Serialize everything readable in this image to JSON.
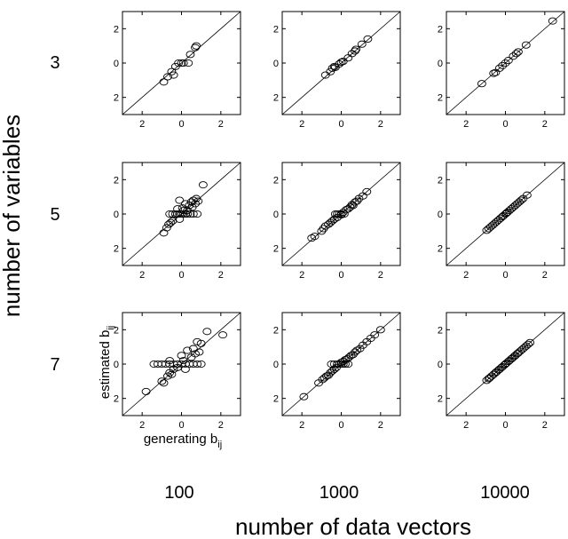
{
  "figure": {
    "y_super_label": "number of variables",
    "x_super_label": "number of data vectors",
    "row_labels": [
      "3",
      "5",
      "7"
    ],
    "col_labels": [
      "100",
      "1000",
      "10000"
    ],
    "panel_ylabel": "estimated b",
    "panel_ylabel_sub": "ij",
    "panel_xlabel": "generating b",
    "panel_xlabel_sub": "ij"
  },
  "chart_data": [
    {
      "type": "scatter",
      "row": "3",
      "col": "100",
      "xlim": [
        -3,
        3
      ],
      "ylim": [
        -3,
        3
      ],
      "xticks": [
        "2",
        "0",
        "2"
      ],
      "yticks": [
        "2",
        "0",
        "2"
      ],
      "grid": false,
      "diagonal": "y = x",
      "points": [
        [
          -0.9,
          -1.1
        ],
        [
          -0.7,
          -0.8
        ],
        [
          -0.5,
          -0.5
        ],
        [
          -0.4,
          -0.7
        ],
        [
          -0.3,
          -0.2
        ],
        [
          -0.15,
          0
        ],
        [
          0,
          0
        ],
        [
          0.1,
          0
        ],
        [
          0.35,
          0
        ],
        [
          0.45,
          0.5
        ],
        [
          0.7,
          0.9
        ],
        [
          0.75,
          1.0
        ]
      ]
    },
    {
      "type": "scatter",
      "row": "3",
      "col": "1000",
      "xlim": [
        -3,
        3
      ],
      "ylim": [
        -3,
        3
      ],
      "xticks": [
        "2",
        "0",
        "2"
      ],
      "yticks": [
        "2",
        "0",
        "2"
      ],
      "grid": false,
      "diagonal": "y = x",
      "points": [
        [
          -0.8,
          -0.7
        ],
        [
          -0.55,
          -0.5
        ],
        [
          -0.45,
          -0.3
        ],
        [
          -0.35,
          -0.2
        ],
        [
          -0.3,
          -0.25
        ],
        [
          -0.1,
          -0.05
        ],
        [
          0,
          0.05
        ],
        [
          0.1,
          0.1
        ],
        [
          0.35,
          0.3
        ],
        [
          0.55,
          0.55
        ],
        [
          0.7,
          0.7
        ],
        [
          0.75,
          0.8
        ],
        [
          1.05,
          1.1
        ],
        [
          1.35,
          1.4
        ]
      ]
    },
    {
      "type": "scatter",
      "row": "3",
      "col": "10000",
      "xlim": [
        -3,
        3
      ],
      "ylim": [
        -3,
        3
      ],
      "xticks": [
        "2",
        "0",
        "2"
      ],
      "yticks": [
        "2",
        "0",
        "2"
      ],
      "grid": false,
      "diagonal": "y = x",
      "points": [
        [
          -1.2,
          -1.2
        ],
        [
          -0.6,
          -0.6
        ],
        [
          -0.5,
          -0.55
        ],
        [
          -0.3,
          -0.3
        ],
        [
          -0.15,
          -0.15
        ],
        [
          0,
          0
        ],
        [
          0.15,
          0.15
        ],
        [
          0.4,
          0.4
        ],
        [
          0.55,
          0.55
        ],
        [
          0.65,
          0.65
        ],
        [
          1.05,
          1.05
        ],
        [
          2.4,
          2.45
        ]
      ]
    },
    {
      "type": "scatter",
      "row": "5",
      "col": "100",
      "xlim": [
        -3,
        3
      ],
      "ylim": [
        -3,
        3
      ],
      "xticks": [
        "2",
        "0",
        "2"
      ],
      "yticks": [
        "2",
        "0",
        "2"
      ],
      "grid": false,
      "diagonal": "y = x",
      "points": [
        [
          -0.9,
          -1.1
        ],
        [
          -0.75,
          -0.8
        ],
        [
          -0.65,
          -0.6
        ],
        [
          -0.55,
          -0.5
        ],
        [
          -0.45,
          -0.4
        ],
        [
          -0.6,
          0
        ],
        [
          -0.45,
          0
        ],
        [
          -0.3,
          0
        ],
        [
          -0.2,
          0
        ],
        [
          -0.1,
          0
        ],
        [
          0,
          0
        ],
        [
          0.1,
          0
        ],
        [
          0.2,
          0
        ],
        [
          0.3,
          0
        ],
        [
          0.45,
          0
        ],
        [
          0.6,
          0
        ],
        [
          0.8,
          0
        ],
        [
          -0.2,
          0.3
        ],
        [
          -0.1,
          0.8
        ],
        [
          -0.1,
          -0.3
        ],
        [
          0.05,
          0.35
        ],
        [
          0.1,
          0.2
        ],
        [
          0.2,
          0.6
        ],
        [
          0.3,
          0.2
        ],
        [
          0.4,
          0.5
        ],
        [
          0.5,
          0.7
        ],
        [
          0.55,
          0.4
        ],
        [
          0.6,
          0.8
        ],
        [
          0.7,
          0.6
        ],
        [
          0.75,
          0.9
        ],
        [
          0.85,
          0.75
        ],
        [
          1.1,
          1.7
        ]
      ]
    },
    {
      "type": "scatter",
      "row": "5",
      "col": "1000",
      "xlim": [
        -3,
        3
      ],
      "ylim": [
        -3,
        3
      ],
      "xticks": [
        "2",
        "0",
        "2"
      ],
      "yticks": [
        "2",
        "0",
        "2"
      ],
      "grid": false,
      "diagonal": "y = x",
      "points": [
        [
          -1.5,
          -1.4
        ],
        [
          -1.35,
          -1.3
        ],
        [
          -1.0,
          -1.0
        ],
        [
          -0.9,
          -0.85
        ],
        [
          -0.8,
          -0.7
        ],
        [
          -0.65,
          -0.6
        ],
        [
          -0.55,
          -0.5
        ],
        [
          -0.45,
          -0.4
        ],
        [
          -0.35,
          -0.3
        ],
        [
          -0.3,
          0
        ],
        [
          -0.2,
          0
        ],
        [
          -0.2,
          -0.2
        ],
        [
          -0.1,
          0
        ],
        [
          0,
          0
        ],
        [
          0,
          -0.05
        ],
        [
          0.1,
          0.1
        ],
        [
          0.15,
          0
        ],
        [
          0.25,
          0.25
        ],
        [
          0.35,
          0.3
        ],
        [
          0.45,
          0.4
        ],
        [
          0.55,
          0.55
        ],
        [
          0.6,
          0.5
        ],
        [
          0.7,
          0.7
        ],
        [
          0.8,
          0.75
        ],
        [
          0.9,
          0.9
        ],
        [
          1.1,
          1.05
        ],
        [
          1.3,
          1.3
        ]
      ]
    },
    {
      "type": "scatter",
      "row": "5",
      "col": "10000",
      "xlim": [
        -3,
        3
      ],
      "ylim": [
        -3,
        3
      ],
      "xticks": [
        "2",
        "0",
        "2"
      ],
      "yticks": [
        "2",
        "0",
        "2"
      ],
      "grid": false,
      "diagonal": "y = x",
      "points": [
        [
          -0.95,
          -0.95
        ],
        [
          -0.85,
          -0.85
        ],
        [
          -0.75,
          -0.75
        ],
        [
          -0.65,
          -0.65
        ],
        [
          -0.55,
          -0.55
        ],
        [
          -0.45,
          -0.45
        ],
        [
          -0.35,
          -0.35
        ],
        [
          -0.25,
          -0.25
        ],
        [
          -0.15,
          -0.15
        ],
        [
          -0.1,
          -0.1
        ],
        [
          0,
          0
        ],
        [
          0.05,
          0.05
        ],
        [
          0.1,
          0.1
        ],
        [
          0.2,
          0.2
        ],
        [
          0.3,
          0.3
        ],
        [
          0.4,
          0.4
        ],
        [
          0.5,
          0.5
        ],
        [
          0.6,
          0.6
        ],
        [
          0.7,
          0.7
        ],
        [
          0.8,
          0.8
        ],
        [
          0.9,
          0.9
        ],
        [
          1.1,
          1.1
        ]
      ]
    },
    {
      "type": "scatter",
      "row": "7",
      "col": "100",
      "xlim": [
        -3,
        3
      ],
      "ylim": [
        -3,
        3
      ],
      "xticks": [
        "2",
        "0",
        "2"
      ],
      "yticks": [
        "2",
        "0",
        "2"
      ],
      "grid": false,
      "diagonal": "y = x",
      "points": [
        [
          -1.8,
          -1.6
        ],
        [
          -1.0,
          -1.0
        ],
        [
          -0.9,
          -1.1
        ],
        [
          -0.7,
          -0.7
        ],
        [
          -0.6,
          -0.5
        ],
        [
          -0.5,
          -0.6
        ],
        [
          -0.4,
          -0.3
        ],
        [
          -1.4,
          0
        ],
        [
          -1.2,
          0
        ],
        [
          -1.0,
          0
        ],
        [
          -0.8,
          0
        ],
        [
          -0.6,
          0
        ],
        [
          -0.4,
          0
        ],
        [
          -0.2,
          0
        ],
        [
          0,
          0
        ],
        [
          0.2,
          0
        ],
        [
          0.4,
          0
        ],
        [
          0.6,
          0
        ],
        [
          0.8,
          0
        ],
        [
          1.0,
          0
        ],
        [
          -0.6,
          0.2
        ],
        [
          -0.2,
          -0.2
        ],
        [
          0,
          0.5
        ],
        [
          0.1,
          0.2
        ],
        [
          0.2,
          -0.3
        ],
        [
          0.3,
          0.8
        ],
        [
          0.5,
          0.4
        ],
        [
          0.6,
          0.9
        ],
        [
          0.7,
          0.6
        ],
        [
          0.8,
          1.3
        ],
        [
          0.9,
          0.7
        ],
        [
          1.0,
          1.2
        ],
        [
          1.3,
          1.9
        ],
        [
          2.1,
          1.7
        ]
      ]
    },
    {
      "type": "scatter",
      "row": "7",
      "col": "1000",
      "xlim": [
        -3,
        3
      ],
      "ylim": [
        -3,
        3
      ],
      "xticks": [
        "2",
        "0",
        "2"
      ],
      "yticks": [
        "2",
        "0",
        "2"
      ],
      "grid": false,
      "diagonal": "y = x",
      "points": [
        [
          -1.9,
          -1.9
        ],
        [
          -1.15,
          -1.1
        ],
        [
          -0.95,
          -0.9
        ],
        [
          -0.85,
          -0.8
        ],
        [
          -0.75,
          -0.7
        ],
        [
          -0.65,
          -0.65
        ],
        [
          -0.55,
          -0.5
        ],
        [
          -0.45,
          -0.4
        ],
        [
          -0.35,
          -0.3
        ],
        [
          -0.25,
          -0.2
        ],
        [
          -0.5,
          0
        ],
        [
          -0.35,
          0
        ],
        [
          -0.2,
          0
        ],
        [
          -0.1,
          0
        ],
        [
          0,
          0
        ],
        [
          0.1,
          0
        ],
        [
          0.2,
          0
        ],
        [
          0.35,
          0
        ],
        [
          0,
          0.1
        ],
        [
          0.1,
          0.15
        ],
        [
          0.2,
          0.25
        ],
        [
          0.3,
          0.3
        ],
        [
          0.4,
          0.4
        ],
        [
          0.5,
          0.5
        ],
        [
          0.6,
          0.55
        ],
        [
          0.7,
          0.7
        ],
        [
          0.8,
          0.8
        ],
        [
          0.95,
          0.9
        ],
        [
          1.1,
          1.1
        ],
        [
          1.3,
          1.3
        ],
        [
          1.5,
          1.5
        ],
        [
          1.7,
          1.7
        ],
        [
          2.0,
          2.0
        ]
      ]
    },
    {
      "type": "scatter",
      "row": "7",
      "col": "10000",
      "xlim": [
        -3,
        3
      ],
      "ylim": [
        -3,
        3
      ],
      "xticks": [
        "2",
        "0",
        "2"
      ],
      "yticks": [
        "2",
        "0",
        "2"
      ],
      "grid": false,
      "diagonal": "y = x",
      "points": [
        [
          -0.95,
          -0.95
        ],
        [
          -0.85,
          -0.85
        ],
        [
          -0.8,
          -0.8
        ],
        [
          -0.7,
          -0.7
        ],
        [
          -0.6,
          -0.6
        ],
        [
          -0.5,
          -0.5
        ],
        [
          -0.45,
          -0.45
        ],
        [
          -0.35,
          -0.35
        ],
        [
          -0.3,
          -0.3
        ],
        [
          -0.2,
          -0.2
        ],
        [
          -0.15,
          -0.15
        ],
        [
          -0.05,
          -0.05
        ],
        [
          0,
          0
        ],
        [
          0.05,
          0.05
        ],
        [
          0.15,
          0.15
        ],
        [
          0.2,
          0.2
        ],
        [
          0.3,
          0.3
        ],
        [
          0.35,
          0.35
        ],
        [
          0.45,
          0.45
        ],
        [
          0.5,
          0.5
        ],
        [
          0.6,
          0.6
        ],
        [
          0.65,
          0.65
        ],
        [
          0.75,
          0.75
        ],
        [
          0.85,
          0.85
        ],
        [
          0.95,
          0.95
        ],
        [
          1.05,
          1.05
        ],
        [
          1.15,
          1.15
        ],
        [
          1.25,
          1.25
        ]
      ]
    }
  ]
}
